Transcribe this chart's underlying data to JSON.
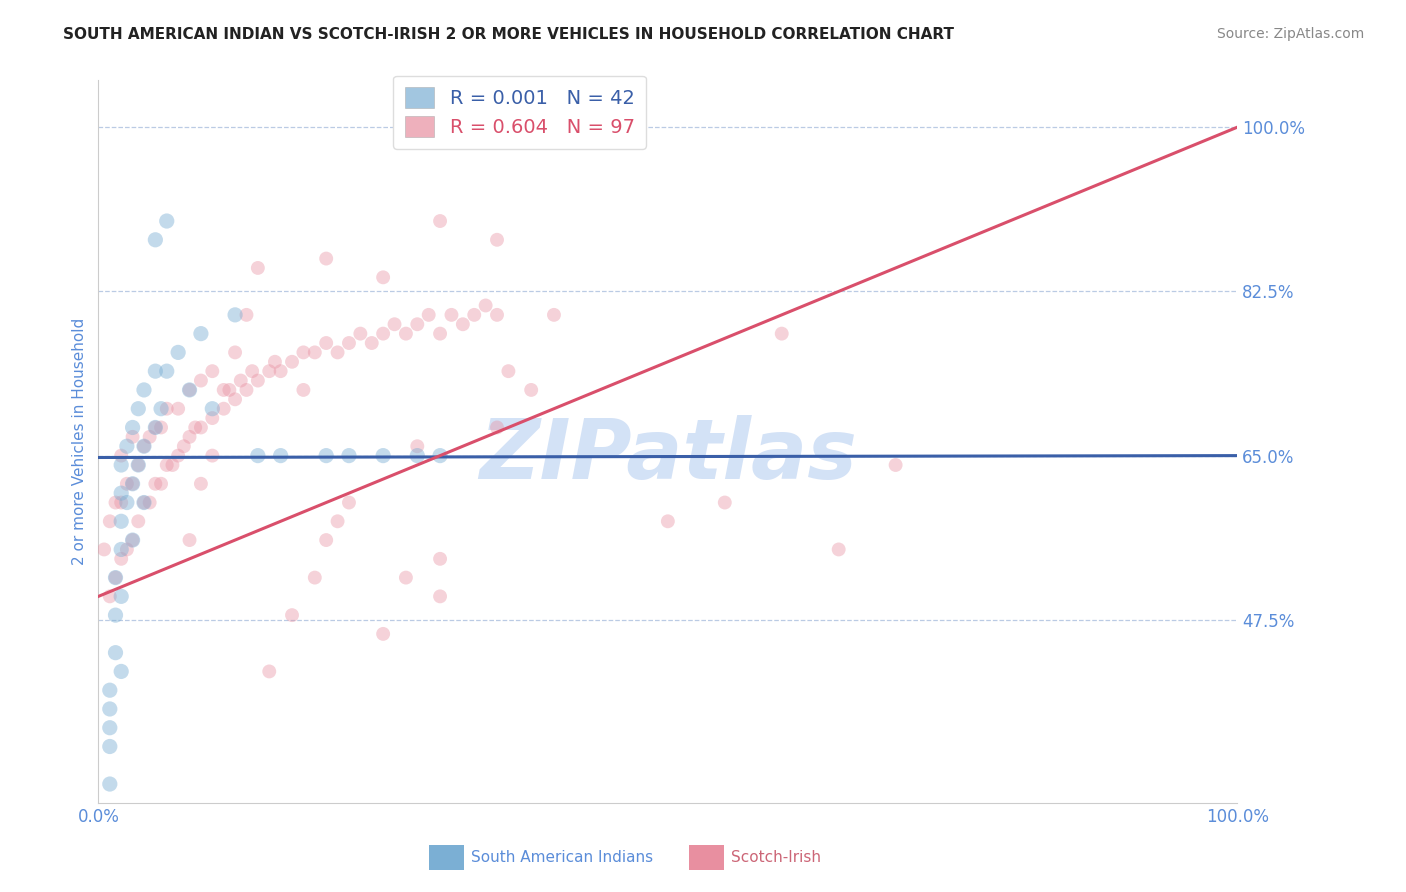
{
  "title": "SOUTH AMERICAN INDIAN VS SCOTCH-IRISH 2 OR MORE VEHICLES IN HOUSEHOLD CORRELATION CHART",
  "source_text": "Source: ZipAtlas.com",
  "ylabel": "2 or more Vehicles in Household",
  "xlim": [
    0.0,
    1.0
  ],
  "ylim": [
    0.28,
    1.05
  ],
  "yticks": [
    0.475,
    0.65,
    0.825,
    1.0
  ],
  "ytick_labels": [
    "47.5%",
    "65.0%",
    "82.5%",
    "100.0%"
  ],
  "xtick_labels": [
    "0.0%",
    "100.0%"
  ],
  "legend1_label": "R = 0.001   N = 42",
  "legend2_label": "R = 0.604   N = 97",
  "blue_color": "#7bafd4",
  "pink_color": "#e88fa0",
  "trend_blue_color": "#3a5fa8",
  "trend_pink_color": "#d94f6b",
  "watermark": "ZIPatlas",
  "watermark_color": "#ccddf5",
  "axis_label_color": "#5b8dd9",
  "tick_label_color": "#5b8dd9",
  "grid_color": "#aabfde",
  "blue_alpha": 0.45,
  "pink_alpha": 0.4,
  "blue_marker_size": 120,
  "pink_marker_size": 100,
  "blue_trend_intercept": 0.648,
  "blue_trend_slope": 0.002,
  "pink_trend_intercept": 0.5,
  "pink_trend_slope": 0.5,
  "blue_x": [
    0.01,
    0.01,
    0.01,
    0.015,
    0.015,
    0.015,
    0.02,
    0.02,
    0.02,
    0.02,
    0.025,
    0.025,
    0.03,
    0.03,
    0.035,
    0.035,
    0.04,
    0.04,
    0.05,
    0.05,
    0.055,
    0.06,
    0.07,
    0.08,
    0.09,
    0.1,
    0.12,
    0.14,
    0.16,
    0.2,
    0.22,
    0.25,
    0.28,
    0.3,
    0.01,
    0.01,
    0.02,
    0.02,
    0.03,
    0.04,
    0.05,
    0.06
  ],
  "blue_y": [
    0.34,
    0.38,
    0.4,
    0.44,
    0.48,
    0.52,
    0.55,
    0.58,
    0.61,
    0.64,
    0.6,
    0.66,
    0.62,
    0.68,
    0.64,
    0.7,
    0.66,
    0.72,
    0.68,
    0.74,
    0.7,
    0.74,
    0.76,
    0.72,
    0.78,
    0.7,
    0.8,
    0.65,
    0.65,
    0.65,
    0.65,
    0.65,
    0.65,
    0.65,
    0.3,
    0.36,
    0.42,
    0.5,
    0.56,
    0.6,
    0.88,
    0.9
  ],
  "pink_x": [
    0.005,
    0.01,
    0.01,
    0.015,
    0.015,
    0.02,
    0.02,
    0.02,
    0.025,
    0.025,
    0.03,
    0.03,
    0.03,
    0.035,
    0.035,
    0.04,
    0.04,
    0.045,
    0.045,
    0.05,
    0.05,
    0.055,
    0.055,
    0.06,
    0.06,
    0.065,
    0.07,
    0.07,
    0.075,
    0.08,
    0.08,
    0.085,
    0.09,
    0.09,
    0.1,
    0.1,
    0.11,
    0.115,
    0.12,
    0.125,
    0.13,
    0.135,
    0.14,
    0.15,
    0.155,
    0.16,
    0.17,
    0.18,
    0.18,
    0.19,
    0.2,
    0.21,
    0.22,
    0.23,
    0.24,
    0.25,
    0.26,
    0.27,
    0.28,
    0.29,
    0.3,
    0.31,
    0.32,
    0.33,
    0.34,
    0.35,
    0.3,
    0.2,
    0.22,
    0.28,
    0.35,
    0.36,
    0.38,
    0.4,
    0.5,
    0.55,
    0.6,
    0.65,
    0.7,
    0.08,
    0.09,
    0.1,
    0.11,
    0.12,
    0.13,
    0.14,
    0.15,
    0.17,
    0.19,
    0.21,
    0.25,
    0.27,
    0.3,
    0.2,
    0.25,
    0.3,
    0.35
  ],
  "pink_y": [
    0.55,
    0.5,
    0.58,
    0.52,
    0.6,
    0.54,
    0.6,
    0.65,
    0.55,
    0.62,
    0.56,
    0.62,
    0.67,
    0.58,
    0.64,
    0.6,
    0.66,
    0.6,
    0.67,
    0.62,
    0.68,
    0.62,
    0.68,
    0.64,
    0.7,
    0.64,
    0.65,
    0.7,
    0.66,
    0.67,
    0.72,
    0.68,
    0.68,
    0.73,
    0.69,
    0.74,
    0.7,
    0.72,
    0.71,
    0.73,
    0.72,
    0.74,
    0.73,
    0.74,
    0.75,
    0.74,
    0.75,
    0.76,
    0.72,
    0.76,
    0.77,
    0.76,
    0.77,
    0.78,
    0.77,
    0.78,
    0.79,
    0.78,
    0.79,
    0.8,
    0.78,
    0.8,
    0.79,
    0.8,
    0.81,
    0.8,
    0.5,
    0.56,
    0.6,
    0.66,
    0.68,
    0.74,
    0.72,
    0.8,
    0.58,
    0.6,
    0.78,
    0.55,
    0.64,
    0.56,
    0.62,
    0.65,
    0.72,
    0.76,
    0.8,
    0.85,
    0.42,
    0.48,
    0.52,
    0.58,
    0.46,
    0.52,
    0.54,
    0.86,
    0.84,
    0.9,
    0.88
  ]
}
